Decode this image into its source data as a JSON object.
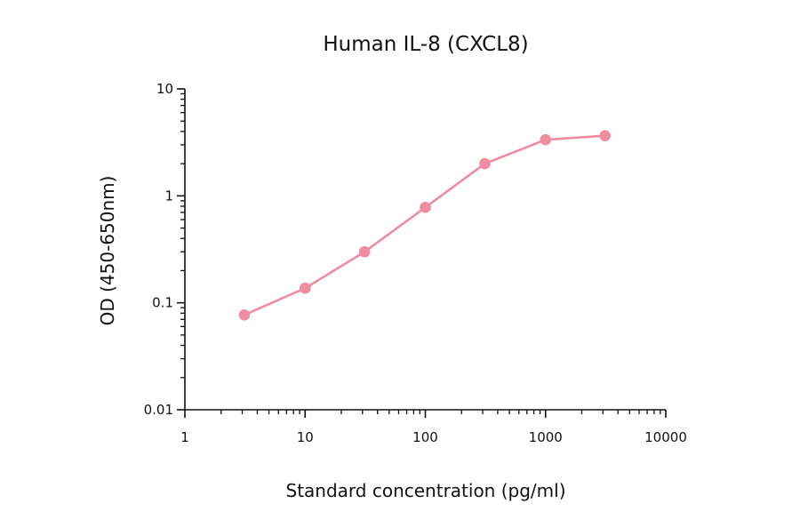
{
  "chart_data": {
    "type": "line",
    "title": "Human IL-8 (CXCL8)",
    "xlabel": "Standard concentration (pg/ml)",
    "ylabel": "OD (450-650nm)",
    "xscale": "log",
    "yscale": "log",
    "xlim": [
      1,
      10000
    ],
    "ylim": [
      0.01,
      10
    ],
    "x_ticks": [
      "1",
      "10",
      "100",
      "1000",
      "10000"
    ],
    "y_ticks": [
      "0.01",
      "0.1",
      "1",
      "10"
    ],
    "grid": false,
    "series": [
      {
        "color": "#f08ca0",
        "x": [
          3.125,
          10,
          31.25,
          100,
          312.5,
          1000,
          3125
        ],
        "y": [
          0.077,
          0.137,
          0.3,
          0.78,
          2.0,
          3.35,
          3.65
        ]
      }
    ]
  }
}
